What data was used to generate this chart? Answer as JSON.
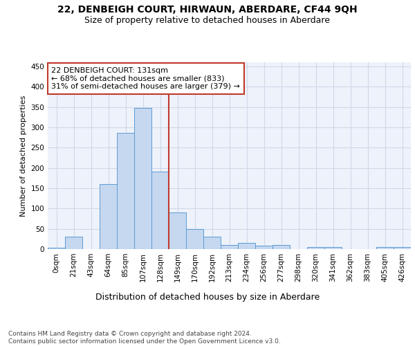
{
  "title": "22, DENBEIGH COURT, HIRWAUN, ABERDARE, CF44 9QH",
  "subtitle": "Size of property relative to detached houses in Aberdare",
  "xlabel": "Distribution of detached houses by size in Aberdare",
  "ylabel": "Number of detached properties",
  "bar_labels": [
    "0sqm",
    "21sqm",
    "43sqm",
    "64sqm",
    "85sqm",
    "107sqm",
    "128sqm",
    "149sqm",
    "170sqm",
    "192sqm",
    "213sqm",
    "234sqm",
    "256sqm",
    "277sqm",
    "298sqm",
    "320sqm",
    "341sqm",
    "362sqm",
    "383sqm",
    "405sqm",
    "426sqm"
  ],
  "bar_values": [
    4,
    31,
    0,
    161,
    286,
    347,
    191,
    91,
    50,
    31,
    10,
    16,
    9,
    10,
    0,
    5,
    5,
    0,
    0,
    5,
    5
  ],
  "bar_color": "#c5d8f0",
  "bar_edge_color": "#5b9bd5",
  "vline_x": 6.5,
  "vline_color": "#c0392b",
  "annotation_text": "22 DENBEIGH COURT: 131sqm\n← 68% of detached houses are smaller (833)\n31% of semi-detached houses are larger (379) →",
  "annotation_box_color": "#c0392b",
  "ylim": [
    0,
    460
  ],
  "yticks": [
    0,
    50,
    100,
    150,
    200,
    250,
    300,
    350,
    400,
    450
  ],
  "grid_color": "#d0d8e8",
  "bg_color": "#eef2fa",
  "footer": "Contains HM Land Registry data © Crown copyright and database right 2024.\nContains public sector information licensed under the Open Government Licence v3.0.",
  "title_fontsize": 10,
  "subtitle_fontsize": 9,
  "xlabel_fontsize": 9,
  "ylabel_fontsize": 8,
  "tick_fontsize": 7.5,
  "footer_fontsize": 6.5,
  "annot_fontsize": 8
}
